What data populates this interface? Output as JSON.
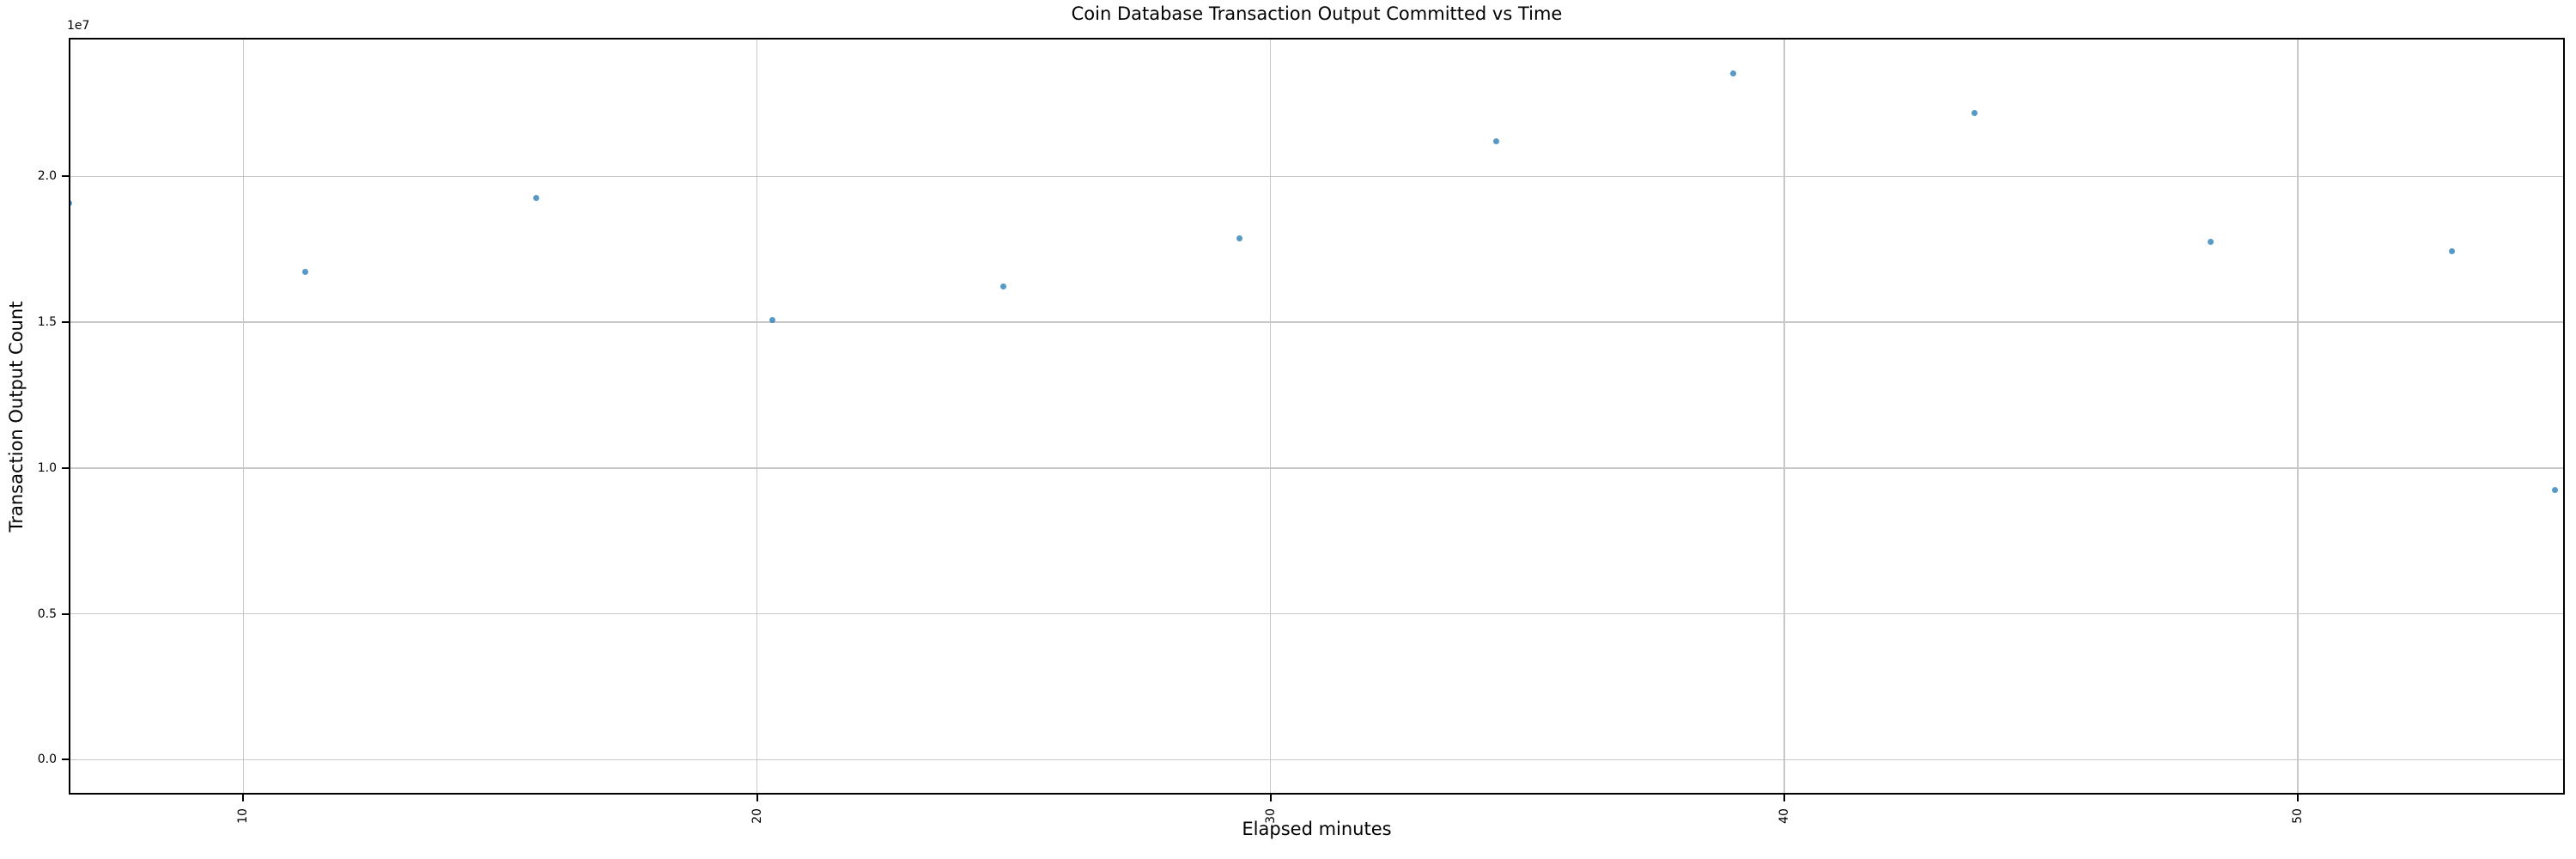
{
  "chart_data": {
    "type": "scatter",
    "title": "Coin Database Transaction Output Committed vs Time",
    "xlabel": "Elapsed minutes",
    "ylabel": "Transaction Output Count",
    "offset_text": "1e7",
    "xlim": [
      6.6,
      55.2
    ],
    "ylim": [
      -1200000,
      24750000
    ],
    "xticks": [
      10,
      20,
      30,
      40,
      50
    ],
    "xtick_labels": [
      "10",
      "20",
      "30",
      "40",
      "50"
    ],
    "ytick_values": [
      0,
      5000000,
      10000000,
      15000000,
      20000000
    ],
    "ytick_labels": [
      "0.0",
      "0.5",
      "1.0",
      "1.5",
      "2.0"
    ],
    "grid": true,
    "legend": "none",
    "points": [
      {
        "x": 6.6,
        "y": 19090000
      },
      {
        "x": 11.2,
        "y": 16710000
      },
      {
        "x": 15.7,
        "y": 19260000
      },
      {
        "x": 20.3,
        "y": 15060000
      },
      {
        "x": 24.8,
        "y": 16210000
      },
      {
        "x": 29.4,
        "y": 17880000
      },
      {
        "x": 34.4,
        "y": 21210000
      },
      {
        "x": 39.0,
        "y": 23530000
      },
      {
        "x": 43.7,
        "y": 22180000
      },
      {
        "x": 48.3,
        "y": 17740000
      },
      {
        "x": 53.0,
        "y": 17440000
      },
      {
        "x": 55.0,
        "y": 9230000
      }
    ],
    "colors": {
      "marker": "rgba(31,119,180,0.75)",
      "grid": "#c8c8c8",
      "spine": "#000000",
      "text": "#000000",
      "background": "#ffffff"
    }
  }
}
